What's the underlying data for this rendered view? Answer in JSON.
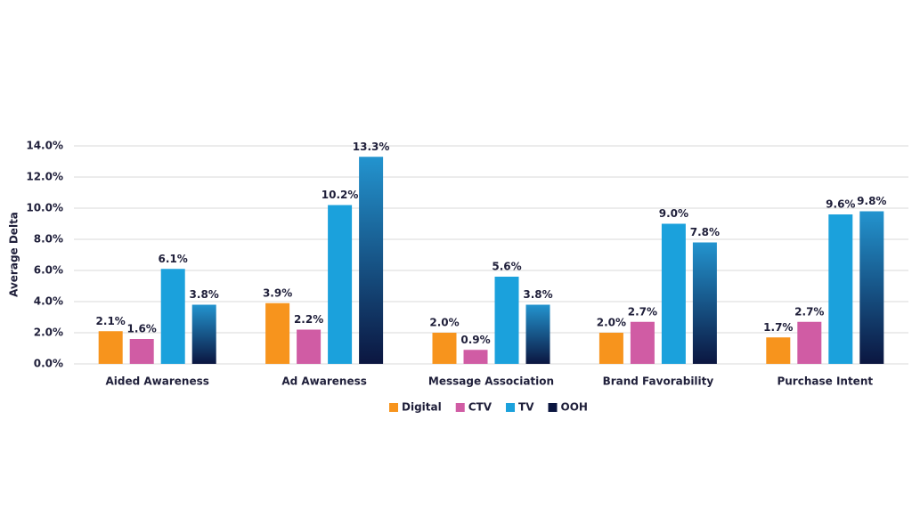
{
  "chart_data": {
    "type": "bar",
    "y_label": "Average Delta",
    "categories": [
      "Aided Awareness",
      "Ad Awareness",
      "Message Association",
      "Brand Favorability",
      "Purchase Intent"
    ],
    "series": [
      {
        "name": "Digital",
        "color": "#f7941d",
        "values": [
          2.1,
          3.9,
          2.0,
          2.0,
          1.7
        ],
        "value_labels": [
          "2.1%",
          "3.9%",
          "2.0%",
          "2.0%",
          "1.7%"
        ]
      },
      {
        "name": "CTV",
        "color": "#d05ca4",
        "values": [
          1.6,
          2.2,
          0.9,
          2.7,
          2.7
        ],
        "value_labels": [
          "1.6%",
          "2.2%",
          "0.9%",
          "2.7%",
          "2.7%"
        ]
      },
      {
        "name": "TV",
        "color": "#1ba1dc",
        "values": [
          6.1,
          10.2,
          5.6,
          9.0,
          9.6
        ],
        "value_labels": [
          "6.1%",
          "10.2%",
          "5.6%",
          "9.0%",
          "9.6%"
        ]
      },
      {
        "name": "OOH",
        "color": "#0b1640",
        "gradient": [
          "#2394cf",
          "#0b1640"
        ],
        "values": [
          3.8,
          13.3,
          3.8,
          7.8,
          9.8
        ],
        "value_labels": [
          "3.8%",
          "13.3%",
          "3.8%",
          "7.8%",
          "9.8%"
        ]
      }
    ],
    "ylim": [
      0,
      14
    ],
    "yticks": [
      {
        "value": 0,
        "label": "0.0%"
      },
      {
        "value": 2,
        "label": "2.0%"
      },
      {
        "value": 4,
        "label": "4.0%"
      },
      {
        "value": 6,
        "label": "6.0%"
      },
      {
        "value": 8,
        "label": "8.0%"
      },
      {
        "value": 10,
        "label": "10.0%"
      },
      {
        "value": 12,
        "label": "12.0%"
      },
      {
        "value": 14,
        "label": "14.0%"
      }
    ],
    "grid": true,
    "legend": "bottom"
  }
}
